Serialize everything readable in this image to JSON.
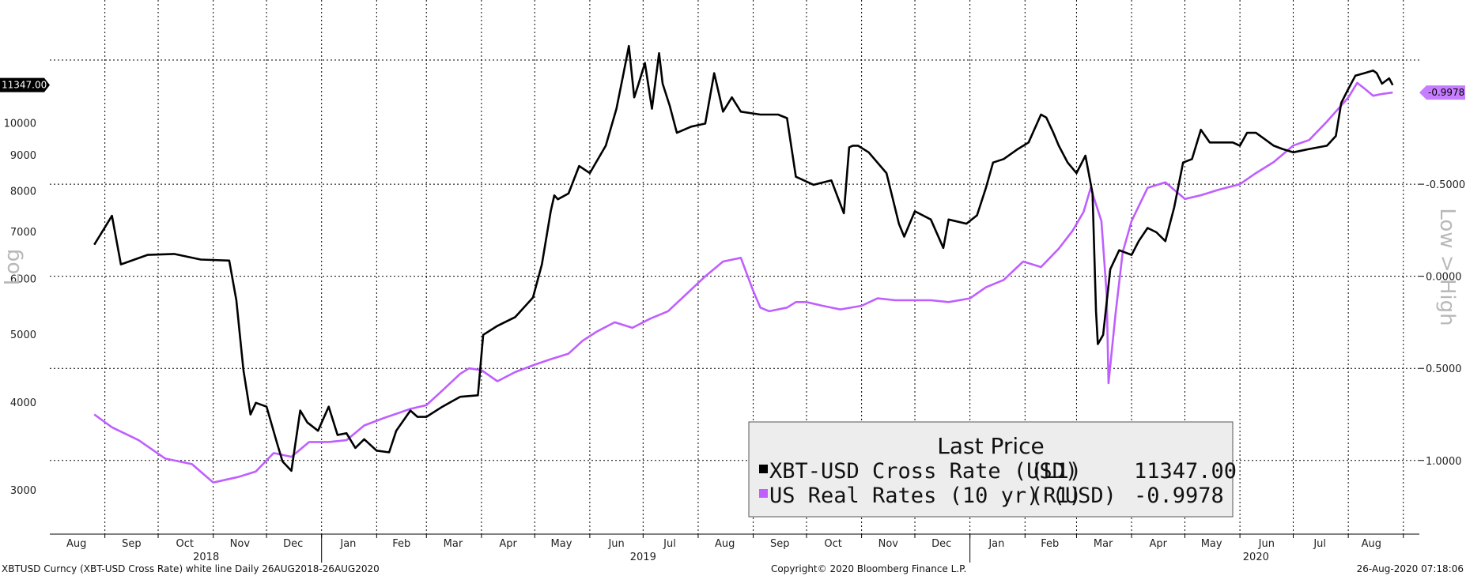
{
  "chart_data": {
    "type": "line",
    "legend": {
      "title": "Last Price",
      "placement": "bottom-center",
      "entries": [
        {
          "name": "XBT-USD Cross Rate (USD)",
          "axis_tag": "(L1)",
          "value": "11347.00",
          "color": "#000000"
        },
        {
          "name": "US Real Rates (10 yr) (USD)",
          "axis_tag": "(R1)",
          "value": "-0.9978",
          "color": "#bf5fff"
        }
      ]
    },
    "left_axis": {
      "scale": "log",
      "range": [
        2600,
        15000
      ],
      "ticks": [
        "3000",
        "4000",
        "5000",
        "6000",
        "7000",
        "8000",
        "9000",
        "10000"
      ],
      "tick_values": [
        3000,
        4000,
        5000,
        6000,
        7000,
        8000,
        9000,
        10000
      ],
      "scale_label": "Log",
      "last_value_tag": "11347.00"
    },
    "right_axis": {
      "scale": "inverted",
      "range": [
        -1.5,
        1.4
      ],
      "ticks": [
        "-0.5000",
        "0.0000",
        "0.5000",
        "1.0000"
      ],
      "tick_values": [
        -0.5,
        0.0,
        0.5,
        1.0
      ],
      "scale_label": "Low > High",
      "last_value_tag": "-0.9978"
    },
    "x_axis": {
      "start": "2018-08-01",
      "end": "2020-09-10",
      "month_labels": [
        {
          "label": "Aug",
          "date": "2018-08-16"
        },
        {
          "label": "Sep",
          "date": "2018-09-16"
        },
        {
          "label": "Oct",
          "date": "2018-10-16"
        },
        {
          "label": "Nov",
          "date": "2018-11-16"
        },
        {
          "label": "Dec",
          "date": "2018-12-16"
        },
        {
          "label": "Jan",
          "date": "2019-01-16"
        },
        {
          "label": "Feb",
          "date": "2019-02-15"
        },
        {
          "label": "Mar",
          "date": "2019-03-16"
        },
        {
          "label": "Apr",
          "date": "2019-04-16"
        },
        {
          "label": "May",
          "date": "2019-05-16"
        },
        {
          "label": "Jun",
          "date": "2019-06-16"
        },
        {
          "label": "Jul",
          "date": "2019-07-16"
        },
        {
          "label": "Aug",
          "date": "2019-08-16"
        },
        {
          "label": "Sep",
          "date": "2019-09-16"
        },
        {
          "label": "Oct",
          "date": "2019-10-16"
        },
        {
          "label": "Nov",
          "date": "2019-11-16"
        },
        {
          "label": "Dec",
          "date": "2019-12-16"
        },
        {
          "label": "Jan",
          "date": "2020-01-16"
        },
        {
          "label": "Feb",
          "date": "2020-02-15"
        },
        {
          "label": "Mar",
          "date": "2020-03-16"
        },
        {
          "label": "Apr",
          "date": "2020-04-16"
        },
        {
          "label": "May",
          "date": "2020-05-16"
        },
        {
          "label": "Jun",
          "date": "2020-06-16"
        },
        {
          "label": "Jul",
          "date": "2020-07-16"
        },
        {
          "label": "Aug",
          "date": "2020-08-14"
        }
      ],
      "year_labels": [
        {
          "label": "2018",
          "date": "2018-10-28"
        },
        {
          "label": "2019",
          "date": "2019-07-01"
        },
        {
          "label": "2020",
          "date": "2020-06-10"
        }
      ],
      "year_dividers": [
        "2019-01-01",
        "2020-01-01"
      ]
    },
    "grid": true,
    "series": [
      {
        "name": "XBT-USD Cross Rate (USD)",
        "axis": "left",
        "color": "#000000",
        "x": [
          "2018-08-26",
          "2018-09-05",
          "2018-09-10",
          "2018-09-25",
          "2018-10-10",
          "2018-10-25",
          "2018-11-10",
          "2018-11-14",
          "2018-11-18",
          "2018-11-22",
          "2018-11-25",
          "2018-12-01",
          "2018-12-07",
          "2018-12-10",
          "2018-12-15",
          "2018-12-20",
          "2018-12-24",
          "2018-12-30",
          "2019-01-05",
          "2019-01-10",
          "2019-01-15",
          "2019-01-20",
          "2019-01-25",
          "2019-02-01",
          "2019-02-08",
          "2019-02-12",
          "2019-02-20",
          "2019-02-24",
          "2019-03-01",
          "2019-03-10",
          "2019-03-20",
          "2019-03-30",
          "2019-04-02",
          "2019-04-10",
          "2019-04-20",
          "2019-04-30",
          "2019-05-05",
          "2019-05-10",
          "2019-05-12",
          "2019-05-14",
          "2019-05-20",
          "2019-05-26",
          "2019-06-01",
          "2019-06-10",
          "2019-06-16",
          "2019-06-20",
          "2019-06-23",
          "2019-06-26",
          "2019-06-28",
          "2019-07-02",
          "2019-07-06",
          "2019-07-10",
          "2019-07-12",
          "2019-07-16",
          "2019-07-20",
          "2019-07-28",
          "2019-08-05",
          "2019-08-10",
          "2019-08-15",
          "2019-08-20",
          "2019-08-25",
          "2019-09-05",
          "2019-09-15",
          "2019-09-20",
          "2019-09-25",
          "2019-10-05",
          "2019-10-15",
          "2019-10-22",
          "2019-10-25",
          "2019-10-27",
          "2019-10-30",
          "2019-11-05",
          "2019-11-15",
          "2019-11-22",
          "2019-11-25",
          "2019-12-01",
          "2019-12-10",
          "2019-12-17",
          "2019-12-20",
          "2019-12-30",
          "2020-01-05",
          "2020-01-10",
          "2020-01-14",
          "2020-01-20",
          "2020-01-28",
          "2020-02-03",
          "2020-02-10",
          "2020-02-13",
          "2020-02-17",
          "2020-02-20",
          "2020-02-25",
          "2020-03-01",
          "2020-03-06",
          "2020-03-10",
          "2020-03-12",
          "2020-03-13",
          "2020-03-16",
          "2020-03-20",
          "2020-03-25",
          "2020-04-01",
          "2020-04-05",
          "2020-04-10",
          "2020-04-15",
          "2020-04-20",
          "2020-04-25",
          "2020-04-30",
          "2020-05-05",
          "2020-05-10",
          "2020-05-15",
          "2020-05-20",
          "2020-05-28",
          "2020-06-01",
          "2020-06-05",
          "2020-06-10",
          "2020-06-15",
          "2020-06-20",
          "2020-06-25",
          "2020-07-01",
          "2020-07-10",
          "2020-07-20",
          "2020-07-25",
          "2020-07-28",
          "2020-08-01",
          "2020-08-05",
          "2020-08-10",
          "2020-08-15",
          "2020-08-17",
          "2020-08-20",
          "2020-08-24",
          "2020-08-26"
        ],
        "y": [
          6720,
          7390,
          6300,
          6500,
          6520,
          6400,
          6380,
          5600,
          4450,
          3850,
          4000,
          3950,
          3500,
          3300,
          3200,
          3900,
          3750,
          3650,
          3950,
          3600,
          3620,
          3450,
          3550,
          3420,
          3400,
          3650,
          3900,
          3820,
          3820,
          3950,
          4080,
          4100,
          5000,
          5150,
          5300,
          5650,
          6300,
          7500,
          7900,
          7800,
          7950,
          8700,
          8500,
          9300,
          10500,
          11800,
          12900,
          10900,
          11300,
          12200,
          10500,
          12600,
          11400,
          10600,
          9700,
          9900,
          10000,
          11800,
          10400,
          10900,
          10400,
          10300,
          10300,
          10180,
          8400,
          8180,
          8300,
          7450,
          9250,
          9300,
          9300,
          9100,
          8500,
          7200,
          6900,
          7500,
          7300,
          6650,
          7300,
          7200,
          7400,
          8100,
          8800,
          8900,
          9200,
          9400,
          10300,
          10200,
          9700,
          9300,
          8800,
          8500,
          9000,
          7950,
          5400,
          4850,
          5000,
          6200,
          6600,
          6500,
          6800,
          7100,
          7000,
          6800,
          7600,
          8800,
          8900,
          9800,
          9400,
          9400,
          9400,
          9300,
          9700,
          9700,
          9500,
          9300,
          9200,
          9100,
          9200,
          9300,
          9600,
          10700,
          11200,
          11700,
          11800,
          11900,
          11800,
          11400,
          11600,
          11347
        ]
      },
      {
        "name": "US Real Rates (10 yr) (USD)",
        "axis": "right",
        "color": "#bf5fff",
        "x": [
          "2018-08-26",
          "2018-09-05",
          "2018-09-20",
          "2018-10-05",
          "2018-10-20",
          "2018-11-01",
          "2018-11-15",
          "2018-11-25",
          "2018-12-05",
          "2018-12-15",
          "2018-12-25",
          "2019-01-05",
          "2019-01-15",
          "2019-01-25",
          "2019-02-05",
          "2019-02-20",
          "2019-03-01",
          "2019-03-10",
          "2019-03-20",
          "2019-03-25",
          "2019-04-01",
          "2019-04-10",
          "2019-04-20",
          "2019-05-01",
          "2019-05-10",
          "2019-05-20",
          "2019-05-28",
          "2019-06-05",
          "2019-06-15",
          "2019-06-25",
          "2019-07-05",
          "2019-07-15",
          "2019-07-25",
          "2019-08-05",
          "2019-08-15",
          "2019-08-25",
          "2019-09-01",
          "2019-09-05",
          "2019-09-10",
          "2019-09-20",
          "2019-09-25",
          "2019-10-01",
          "2019-10-10",
          "2019-10-20",
          "2019-11-01",
          "2019-11-10",
          "2019-11-20",
          "2019-12-01",
          "2019-12-10",
          "2019-12-20",
          "2020-01-01",
          "2020-01-10",
          "2020-01-20",
          "2020-01-31",
          "2020-02-10",
          "2020-02-20",
          "2020-02-28",
          "2020-03-05",
          "2020-03-09",
          "2020-03-15",
          "2020-03-18",
          "2020-03-19",
          "2020-03-23",
          "2020-03-27",
          "2020-04-01",
          "2020-04-10",
          "2020-04-20",
          "2020-05-01",
          "2020-05-10",
          "2020-05-20",
          "2020-06-01",
          "2020-06-10",
          "2020-06-20",
          "2020-07-01",
          "2020-07-10",
          "2020-07-20",
          "2020-08-01",
          "2020-08-06",
          "2020-08-10",
          "2020-08-15",
          "2020-08-20",
          "2020-08-26"
        ],
        "y": [
          0.75,
          0.82,
          0.89,
          0.99,
          1.02,
          1.12,
          1.09,
          1.06,
          0.96,
          0.98,
          0.9,
          0.9,
          0.89,
          0.81,
          0.77,
          0.72,
          0.7,
          0.62,
          0.53,
          0.5,
          0.51,
          0.57,
          0.52,
          0.48,
          0.45,
          0.42,
          0.35,
          0.3,
          0.25,
          0.28,
          0.23,
          0.19,
          0.1,
          0.0,
          -0.08,
          -0.1,
          0.08,
          0.17,
          0.19,
          0.17,
          0.14,
          0.14,
          0.16,
          0.18,
          0.16,
          0.12,
          0.13,
          0.13,
          0.13,
          0.14,
          0.12,
          0.06,
          0.02,
          -0.08,
          -0.05,
          -0.15,
          -0.25,
          -0.35,
          -0.48,
          -0.3,
          0.1,
          0.58,
          0.2,
          -0.13,
          -0.3,
          -0.48,
          -0.51,
          -0.42,
          -0.44,
          -0.47,
          -0.5,
          -0.56,
          -0.62,
          -0.71,
          -0.74,
          -0.84,
          -0.97,
          -1.05,
          -1.02,
          -0.98,
          -0.99,
          -0.9978
        ]
      }
    ]
  },
  "footer": {
    "left": "XBTUSD Curncy (XBT-USD Cross Rate) white line  Daily 26AUG2018-26AUG2020",
    "center": "Copyright© 2020 Bloomberg Finance L.P.",
    "right": "26-Aug-2020 07:18:06"
  },
  "colors": {
    "gridline": "#000000",
    "legend_bg": "#ededed",
    "xbt_tag_bg": "#000000",
    "rates_tag_bg": "#c77dff"
  }
}
